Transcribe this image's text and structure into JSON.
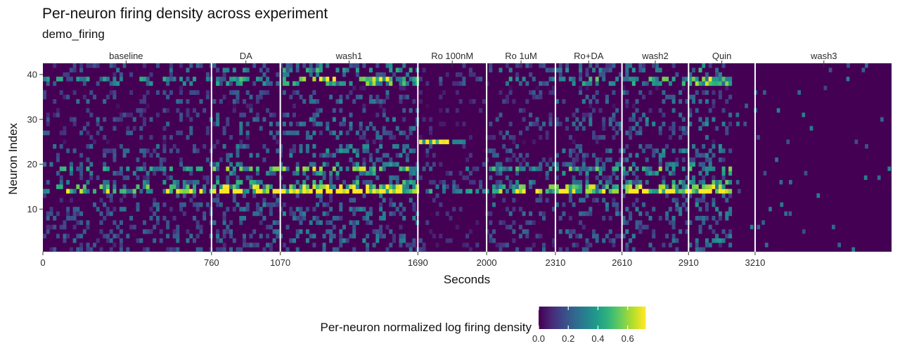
{
  "title": "Per-neuron firing density across experiment",
  "subtitle": "demo_firing",
  "chart_data": {
    "type": "heatmap",
    "xlabel": "Seconds",
    "ylabel": "Neuron Index",
    "xlim": [
      0,
      3825
    ],
    "ylim": [
      0.5,
      42.5
    ],
    "x_ticks": [
      0,
      760,
      1070,
      1690,
      2000,
      2310,
      2610,
      2910,
      3210
    ],
    "y_ticks": [
      10,
      20,
      30,
      40
    ],
    "phase_boundaries": [
      760,
      1070,
      1690,
      2000,
      2310,
      2610,
      2910,
      3210
    ],
    "phases": [
      {
        "label": "baseline",
        "x": 375
      },
      {
        "label": "DA",
        "x": 915
      },
      {
        "label": "wash1",
        "x": 1380
      },
      {
        "label": "Ro 100nM",
        "x": 1845
      },
      {
        "label": "Ro 1uM",
        "x": 2155
      },
      {
        "label": "Ro+DA",
        "x": 2460
      },
      {
        "label": "wash2",
        "x": 2760
      },
      {
        "label": "Quin",
        "x": 3060
      },
      {
        "label": "wash3",
        "x": 3520
      }
    ],
    "n_neurons": 42,
    "bin_seconds": 15,
    "recording_end_seconds": 3100,
    "colorscale": "viridis",
    "legend": {
      "title": "Per-neuron normalized log firing density",
      "range": [
        0,
        0.72
      ],
      "ticks": [
        0.0,
        0.2,
        0.4,
        0.6
      ],
      "tick_labels": [
        "0.0",
        "0.2",
        "0.4",
        "0.6"
      ],
      "position": "bottom"
    },
    "background_color": "#440154",
    "boundary_color": "#ffffff"
  }
}
